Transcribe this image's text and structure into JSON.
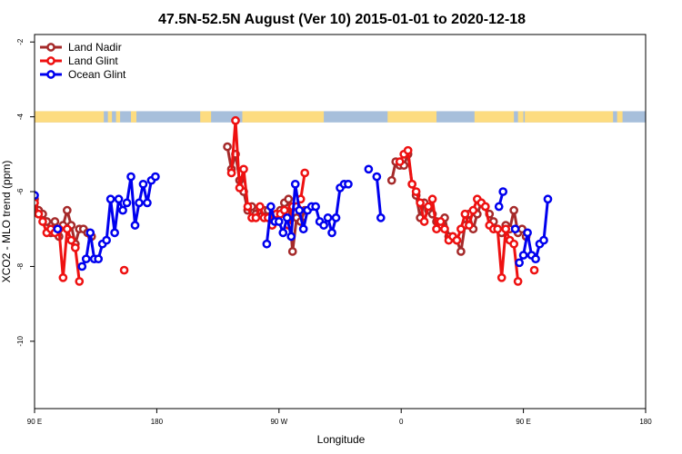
{
  "chart_data": {
    "type": "line",
    "title": "47.5N-52.5N August (Ver 10)   2015-01-01 to 2020-12-18",
    "xlabel": "Longitude",
    "ylabel": "XCO2 - MLO trend (ppm)",
    "xlim": [
      90,
      540
    ],
    "ylim": [
      -11.8,
      -1.8
    ],
    "x_ticks": [
      {
        "value": 90,
        "label": "90 E"
      },
      {
        "value": 180,
        "label": "180"
      },
      {
        "value": 270,
        "label": "90 W"
      },
      {
        "value": 360,
        "label": "0"
      },
      {
        "value": 450,
        "label": "90 E"
      },
      {
        "value": 540,
        "label": "180"
      }
    ],
    "y_ticks": [
      {
        "value": -2,
        "label": "-2"
      },
      {
        "value": -4,
        "label": "-4"
      },
      {
        "value": -6,
        "label": "-6"
      },
      {
        "value": -8,
        "label": "-8"
      },
      {
        "value": -10,
        "label": "-10"
      }
    ],
    "land_ocean_band": {
      "y_range": [
        -4.15,
        -3.85
      ],
      "land_color": "#fddc80",
      "ocean_color": "#a7bfdb",
      "land_segments": [
        [
          90,
          141
        ],
        [
          144,
          147
        ],
        [
          150,
          153
        ],
        [
          161,
          165
        ],
        [
          212,
          220
        ],
        [
          243,
          303
        ],
        [
          350,
          386
        ],
        [
          414,
          443
        ],
        [
          446,
          450
        ],
        [
          451,
          516
        ],
        [
          519,
          523
        ]
      ]
    },
    "legend": {
      "position": "top-left"
    },
    "series": [
      {
        "name": "Land Nadir",
        "color": "#a52a2a",
        "segments": [
          [
            [
              90,
              -6.2
            ],
            [
              93,
              -6.5
            ],
            [
              96,
              -6.6
            ],
            [
              99,
              -6.8
            ],
            [
              102,
              -7.1
            ],
            [
              105,
              -6.8
            ],
            [
              108,
              -7.2
            ],
            [
              111,
              -6.9
            ],
            [
              114,
              -6.5
            ],
            [
              117,
              -6.9
            ],
            [
              120,
              -7.4
            ],
            [
              123,
              -7.0
            ],
            [
              126,
              -7.0
            ],
            [
              129,
              -7.1
            ],
            [
              132,
              -7.2
            ]
          ],
          [
            [
              232,
              -4.8
            ],
            [
              235,
              -5.4
            ],
            [
              238,
              -5.0
            ],
            [
              241,
              -5.7
            ],
            [
              244,
              -6.0
            ],
            [
              247,
              -6.5
            ],
            [
              250,
              -6.4
            ],
            [
              253,
              -6.6
            ],
            [
              256,
              -6.5
            ],
            [
              259,
              -6.5
            ],
            [
              262,
              -6.5
            ],
            [
              265,
              -6.7
            ],
            [
              268,
              -6.6
            ],
            [
              271,
              -6.5
            ],
            [
              274,
              -6.3
            ],
            [
              277,
              -6.2
            ],
            [
              280,
              -7.6
            ],
            [
              283,
              -6.7
            ],
            [
              286,
              -6.8
            ],
            [
              289,
              -6.5
            ]
          ],
          [
            [
              353,
              -5.7
            ],
            [
              356,
              -5.2
            ],
            [
              359,
              -5.3
            ],
            [
              362,
              -5.3
            ],
            [
              365,
              -5.0
            ],
            [
              368,
              -5.8
            ],
            [
              371,
              -6.1
            ],
            [
              374,
              -6.7
            ],
            [
              377,
              -6.3
            ],
            [
              380,
              -6.5
            ],
            [
              383,
              -6.6
            ],
            [
              386,
              -6.8
            ],
            [
              389,
              -6.9
            ],
            [
              392,
              -6.7
            ],
            [
              395,
              -7.2
            ],
            [
              398,
              -7.2
            ],
            [
              401,
              -7.3
            ],
            [
              404,
              -7.6
            ],
            [
              407,
              -6.9
            ],
            [
              410,
              -6.6
            ],
            [
              413,
              -7.0
            ],
            [
              416,
              -6.6
            ],
            [
              419,
              -6.3
            ],
            [
              422,
              -6.4
            ],
            [
              425,
              -6.6
            ],
            [
              428,
              -6.8
            ],
            [
              431,
              -7.0
            ],
            [
              434,
              -7.1
            ],
            [
              437,
              -6.9
            ],
            [
              440,
              -7.0
            ],
            [
              443,
              -6.5
            ],
            [
              446,
              -7.1
            ],
            [
              449,
              -7.0
            ],
            [
              452,
              -7.2
            ]
          ]
        ]
      },
      {
        "name": "Land Glint",
        "color": "#ee1111",
        "segments": [
          [
            [
              90,
              -6.3
            ],
            [
              93,
              -6.6
            ],
            [
              96,
              -6.8
            ],
            [
              99,
              -7.1
            ],
            [
              102,
              -7.0
            ],
            [
              105,
              -7.1
            ],
            [
              108,
              -7.0
            ],
            [
              111,
              -8.3
            ],
            [
              114,
              -7.0
            ],
            [
              117,
              -7.3
            ],
            [
              120,
              -7.5
            ],
            [
              123,
              -8.4
            ]
          ],
          [
            [
              156,
              -8.1
            ]
          ],
          [
            [
              235,
              -5.5
            ],
            [
              238,
              -4.1
            ],
            [
              241,
              -5.9
            ],
            [
              244,
              -5.4
            ],
            [
              247,
              -6.4
            ],
            [
              250,
              -6.7
            ],
            [
              253,
              -6.7
            ],
            [
              256,
              -6.4
            ],
            [
              259,
              -6.7
            ],
            [
              262,
              -6.7
            ],
            [
              265,
              -6.9
            ],
            [
              268,
              -6.6
            ],
            [
              271,
              -6.6
            ],
            [
              274,
              -6.5
            ],
            [
              277,
              -6.9
            ],
            [
              280,
              -6.4
            ],
            [
              283,
              -6.4
            ],
            [
              286,
              -6.2
            ],
            [
              289,
              -5.5
            ]
          ],
          [
            [
              359,
              -5.2
            ],
            [
              362,
              -5.0
            ],
            [
              365,
              -4.9
            ],
            [
              368,
              -5.8
            ],
            [
              371,
              -6.0
            ],
            [
              374,
              -6.3
            ],
            [
              377,
              -6.8
            ],
            [
              380,
              -6.4
            ],
            [
              383,
              -6.2
            ],
            [
              386,
              -7.0
            ],
            [
              389,
              -6.8
            ],
            [
              392,
              -7.0
            ],
            [
              395,
              -7.3
            ],
            [
              398,
              -7.2
            ],
            [
              401,
              -7.3
            ],
            [
              404,
              -7.0
            ],
            [
              407,
              -6.6
            ],
            [
              410,
              -6.9
            ],
            [
              413,
              -6.5
            ],
            [
              416,
              -6.2
            ],
            [
              419,
              -6.3
            ],
            [
              422,
              -6.4
            ],
            [
              425,
              -6.9
            ],
            [
              428,
              -7.0
            ],
            [
              431,
              -7.0
            ],
            [
              434,
              -8.3
            ],
            [
              437,
              -7.0
            ],
            [
              440,
              -7.3
            ],
            [
              443,
              -7.4
            ],
            [
              446,
              -8.4
            ]
          ],
          [
            [
              458,
              -8.1
            ]
          ]
        ]
      },
      {
        "name": "Ocean Glint",
        "color": "#0000ee",
        "segments": [
          [
            [
              90,
              -6.1
            ]
          ],
          [
            [
              107,
              -7.0
            ]
          ],
          [
            [
              125,
              -8.0
            ],
            [
              128,
              -7.8
            ],
            [
              131,
              -7.1
            ],
            [
              134,
              -7.8
            ],
            [
              137,
              -7.8
            ],
            [
              140,
              -7.4
            ],
            [
              143,
              -7.3
            ],
            [
              146,
              -6.2
            ],
            [
              149,
              -7.1
            ],
            [
              152,
              -6.2
            ],
            [
              155,
              -6.5
            ],
            [
              158,
              -6.3
            ],
            [
              161,
              -5.6
            ],
            [
              164,
              -6.9
            ],
            [
              167,
              -6.3
            ],
            [
              170,
              -5.8
            ],
            [
              173,
              -6.3
            ],
            [
              176,
              -5.7
            ],
            [
              179,
              -5.6
            ]
          ],
          [
            [
              261,
              -7.4
            ],
            [
              264,
              -6.4
            ],
            [
              267,
              -6.8
            ],
            [
              270,
              -6.8
            ],
            [
              273,
              -7.1
            ],
            [
              276,
              -6.7
            ],
            [
              279,
              -7.2
            ],
            [
              282,
              -5.8
            ],
            [
              285,
              -6.5
            ],
            [
              288,
              -7.0
            ],
            [
              291,
              -6.5
            ],
            [
              294,
              -6.4
            ],
            [
              297,
              -6.4
            ],
            [
              300,
              -6.8
            ],
            [
              303,
              -6.9
            ],
            [
              306,
              -6.7
            ],
            [
              309,
              -7.1
            ],
            [
              312,
              -6.7
            ],
            [
              315,
              -5.9
            ],
            [
              318,
              -5.8
            ],
            [
              321,
              -5.8
            ]
          ],
          [
            [
              336,
              -5.4
            ]
          ],
          [
            [
              342,
              -5.6
            ],
            [
              345,
              -6.7
            ]
          ],
          [
            [
              432,
              -6.4
            ],
            [
              435,
              -6.0
            ]
          ],
          [
            [
              444,
              -7.0
            ]
          ],
          [
            [
              447,
              -7.9
            ],
            [
              450,
              -7.7
            ],
            [
              453,
              -7.1
            ],
            [
              456,
              -7.7
            ],
            [
              459,
              -7.8
            ],
            [
              462,
              -7.4
            ],
            [
              465,
              -7.3
            ],
            [
              468,
              -6.2
            ]
          ]
        ]
      }
    ]
  }
}
